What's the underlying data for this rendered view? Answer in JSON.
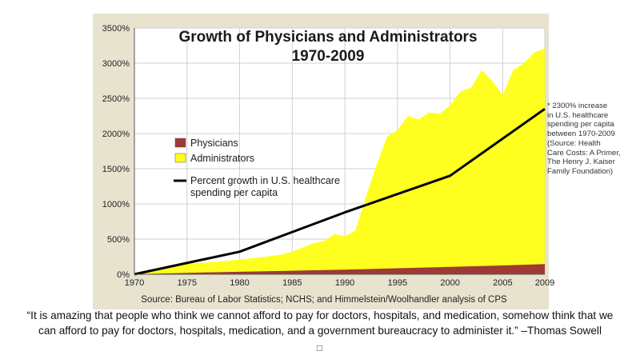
{
  "chart_data": {
    "type": "area",
    "title": [
      "Growth of Physicians and Administrators",
      "1970-2009"
    ],
    "xlabel": "",
    "ylabel": "",
    "xlim": [
      1970,
      2009
    ],
    "ylim": [
      0,
      3500
    ],
    "x_ticks": [
      {
        "value": 1970,
        "label": "1970"
      },
      {
        "value": 1975,
        "label": "1975"
      },
      {
        "value": 1980,
        "label": "1980"
      },
      {
        "value": 1985,
        "label": "1985"
      },
      {
        "value": 1990,
        "label": "1990"
      },
      {
        "value": 1995,
        "label": "1995"
      },
      {
        "value": 2000,
        "label": "2000"
      },
      {
        "value": 2005,
        "label": "2005"
      },
      {
        "value": 2009,
        "label": "2009"
      }
    ],
    "y_ticks": [
      {
        "value": 0,
        "label": "0%"
      },
      {
        "value": 500,
        "label": "500%"
      },
      {
        "value": 1000,
        "label": "1000%"
      },
      {
        "value": 1500,
        "label": "1500%"
      },
      {
        "value": 2000,
        "label": "2000%"
      },
      {
        "value": 2500,
        "label": "2500%"
      },
      {
        "value": 3000,
        "label": "3000%"
      },
      {
        "value": 3500,
        "label": "3500%"
      }
    ],
    "series": [
      {
        "name": "Administrators",
        "kind": "area",
        "color": "#ffff1f",
        "x": [
          1970,
          1972,
          1975,
          1978,
          1980,
          1982,
          1984,
          1985,
          1986,
          1987,
          1988,
          1989,
          1990,
          1991,
          1992,
          1993,
          1994,
          1995,
          1996,
          1997,
          1998,
          1999,
          2000,
          2001,
          2002,
          2003,
          2004,
          2005,
          2006,
          2007,
          2008,
          2009
        ],
        "values": [
          0,
          60,
          150,
          180,
          210,
          240,
          280,
          320,
          380,
          440,
          470,
          570,
          540,
          620,
          1100,
          1550,
          1950,
          2050,
          2250,
          2200,
          2300,
          2280,
          2400,
          2600,
          2650,
          2900,
          2750,
          2550,
          2900,
          3000,
          3150,
          3210
        ]
      },
      {
        "name": "Physicians",
        "kind": "area",
        "color": "#9e3a33",
        "x": [
          1970,
          1975,
          1980,
          1985,
          1990,
          1995,
          2000,
          2005,
          2009
        ],
        "values": [
          0,
          20,
          35,
          50,
          65,
          85,
          105,
          125,
          145
        ]
      },
      {
        "name": "Percent growth in U.S. healthcare spending per capita",
        "kind": "line",
        "color": "#000000",
        "x": [
          1970,
          1980,
          1990,
          2000,
          2009
        ],
        "values": [
          0,
          320,
          880,
          1400,
          2350
        ]
      }
    ],
    "legend": {
      "placement": "center-left",
      "entries": [
        {
          "label": "Physicians",
          "swatch": "#9e3a33"
        },
        {
          "label": "Administrators",
          "swatch": "#ffff1f"
        },
        {
          "label_lines": [
            "Percent growth in U.S. healthcare",
            "spending per capita"
          ],
          "swatch": "line"
        }
      ]
    },
    "source": "Source: Bureau of Labor Statistics; NCHS; and Himmelstein/Woolhandler analysis of CPS",
    "annotation_lines": [
      "* 2300% increase",
      "in U.S. healthcare",
      "spending per capita",
      "between 1970-2009",
      "(Source: Health",
      "Care Costs: A Primer,",
      "The Henry J. Kaiser",
      "Family Foundation)"
    ],
    "colors": {
      "frame_bg": "#e8e3cf",
      "plot_bg": "#ffffff",
      "grid": "#d0d0d0"
    }
  },
  "quote": {
    "lines": [
      "“It is amazing that people who think we cannot afford to pay for doctors, hospitals, and medication, somehow think that we",
      "can afford to pay for doctors, hospitals, medication, and a government bureaucracy to administer it.” –Thomas Sowell"
    ],
    "mark": "□"
  }
}
